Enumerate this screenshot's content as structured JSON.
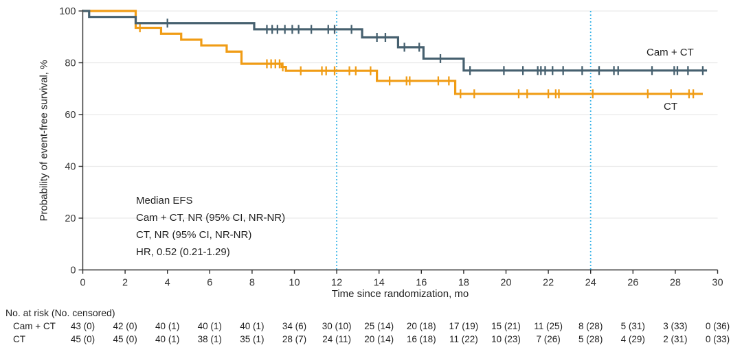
{
  "figure": {
    "ylabel": "Probability of event-free survival, %",
    "xlabel": "Time since randomization, mo",
    "legend": {
      "cam_ct": "Cam + CT",
      "ct": "CT"
    },
    "annotation": {
      "line1": "Median EFS",
      "line2": "Cam + CT, NR (95% CI, NR-NR)",
      "line3": "CT, NR (95% CI, NR-NR)",
      "line4": "HR, 0.52 (0.21-1.29)"
    },
    "colors": {
      "cam_ct": "#46606F",
      "ct": "#F09C15",
      "reference_line": "#3DB5E8",
      "grid": "#E9E9E9",
      "axis": "#2D2D2D",
      "tick_text": "#333333"
    }
  },
  "chart_data": {
    "type": "line",
    "subtype": "kaplan-meier-step",
    "title": "",
    "xlabel": "Time since randomization, mo",
    "ylabel": "Probability of event-free survival, %",
    "xlim": [
      0,
      30
    ],
    "ylim": [
      0,
      100
    ],
    "xticks": [
      0,
      2,
      4,
      6,
      8,
      10,
      12,
      14,
      16,
      18,
      20,
      22,
      24,
      26,
      28,
      30
    ],
    "yticks": [
      0,
      20,
      40,
      60,
      80,
      100
    ],
    "grid": "horizontal-only",
    "reference_lines_x": [
      12,
      24
    ],
    "legend_position": "right-of-curves",
    "series": [
      {
        "name": "CT",
        "color": "#F09C15",
        "steps": [
          [
            0,
            100
          ],
          [
            2.5,
            93.5
          ],
          [
            3.7,
            91.2
          ],
          [
            4.65,
            88.9
          ],
          [
            5.6,
            86.7
          ],
          [
            6.8,
            84.3
          ],
          [
            7.5,
            79.6
          ],
          [
            9.4,
            78.4
          ],
          [
            9.6,
            76.9
          ],
          [
            13.9,
            73.0
          ],
          [
            17.6,
            68.0
          ]
        ],
        "end": 29.3,
        "censors": [
          2.7,
          8.7,
          8.9,
          9.1,
          9.3,
          9.45,
          10.3,
          11.3,
          11.5,
          11.9,
          12.6,
          12.9,
          13.6,
          14.5,
          15.3,
          15.45,
          16.8,
          17.3,
          17.85,
          18.5,
          20.6,
          21.0,
          22.0,
          22.35,
          22.5,
          24.1,
          26.7,
          27.8,
          28.65,
          28.85
        ]
      },
      {
        "name": "Cam + CT",
        "color": "#46606F",
        "steps": [
          [
            0,
            100
          ],
          [
            0.3,
            97.7
          ],
          [
            2.5,
            95.3
          ],
          [
            8.1,
            92.9
          ],
          [
            13.2,
            89.8
          ],
          [
            14.9,
            86.0
          ],
          [
            16.1,
            81.6
          ],
          [
            18.0,
            77.0
          ]
        ],
        "end": 29.5,
        "censors": [
          4.0,
          8.7,
          8.95,
          9.2,
          9.55,
          9.9,
          10.2,
          10.8,
          11.6,
          11.9,
          12.7,
          13.9,
          14.3,
          15.2,
          15.9,
          16.9,
          18.3,
          19.9,
          20.8,
          21.5,
          21.65,
          21.85,
          22.2,
          22.7,
          23.6,
          24.4,
          25.1,
          25.3,
          26.9,
          27.95,
          28.1,
          28.6,
          29.3
        ]
      }
    ]
  },
  "risk_table": {
    "header": "No. at risk (No. censored)",
    "times": [
      0,
      2,
      4,
      6,
      8,
      10,
      12,
      14,
      16,
      18,
      20,
      22,
      24,
      26,
      28,
      30
    ],
    "rows": [
      {
        "label": "Cam + CT",
        "values": [
          "43 (0)",
          "42 (0)",
          "40 (1)",
          "40 (1)",
          "40 (1)",
          "34 (6)",
          "30 (10)",
          "25 (14)",
          "20 (18)",
          "17 (19)",
          "15 (21)",
          "11 (25)",
          "8 (28)",
          "5 (31)",
          "3 (33)",
          "0 (36)"
        ]
      },
      {
        "label": "CT",
        "values": [
          "45 (0)",
          "45 (0)",
          "40 (1)",
          "38 (1)",
          "35 (1)",
          "28 (7)",
          "24 (11)",
          "20 (14)",
          "16 (18)",
          "11 (22)",
          "10 (23)",
          "7 (26)",
          "5 (28)",
          "4 (29)",
          "2 (31)",
          "0 (33)"
        ]
      }
    ]
  }
}
